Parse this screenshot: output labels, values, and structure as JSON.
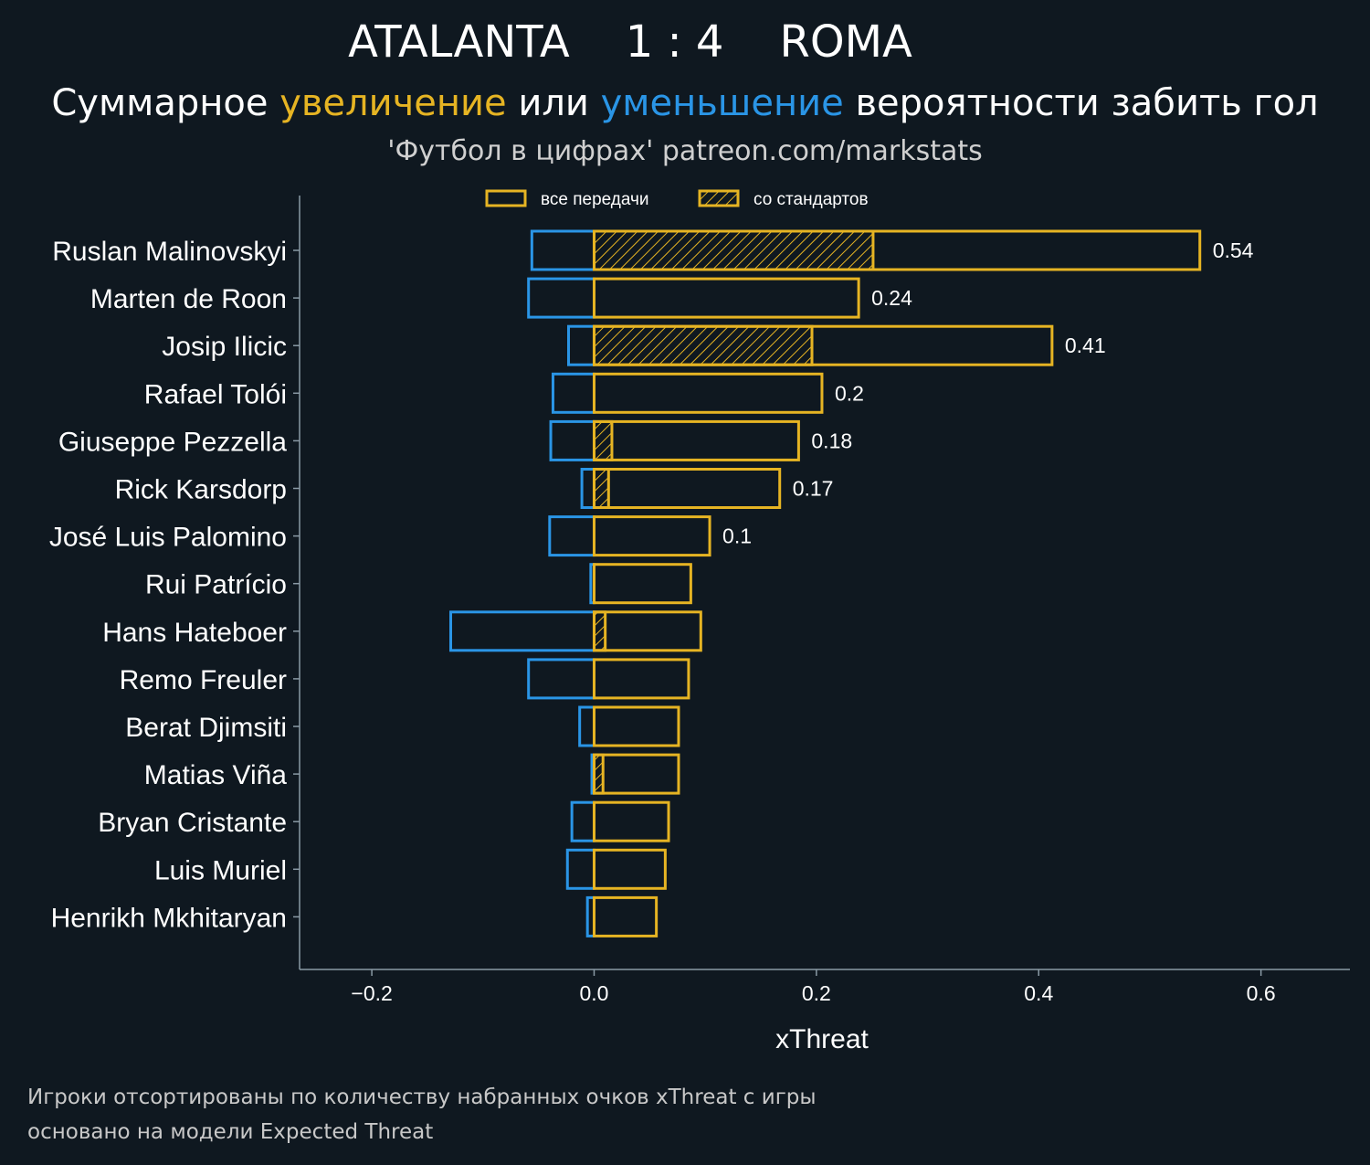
{
  "header": {
    "title": "ATALANTA    1 : 4    ROMA",
    "subtitle_part1": "Суммарное ",
    "subtitle_increase": "увеличение",
    "subtitle_part2": " или ",
    "subtitle_decrease": "уменьшение",
    "subtitle_part3": " вероятности забить гол",
    "source": "'Футбол в цифрах' patreon.com/markstats"
  },
  "colors": {
    "background": "#0f1820",
    "positive": "#e6b423",
    "negative": "#2a95e6",
    "axis": "#8a9aa5"
  },
  "chart_data": {
    "type": "bar",
    "orientation": "horizontal",
    "xlabel": "xThreat",
    "xlim": [
      -0.265,
      0.68
    ],
    "xticks": [
      -0.2,
      0.0,
      0.2,
      0.4,
      0.6
    ],
    "xtick_labels": [
      "−0.2",
      "0.0",
      "0.2",
      "0.4",
      "0.6"
    ],
    "legend": {
      "position": "top",
      "all_passes": "все передачи",
      "set_pieces": "со стандартов"
    },
    "categories": [
      "Ruslan Malinovskyi",
      "Marten de Roon",
      "Josip Ilicic",
      "Rafael Tolói",
      "Giuseppe Pezzella",
      "Rick Karsdorp",
      "José Luis Palomino",
      "Rui Patrício",
      "Hans Hateboer",
      "Remo Freuler",
      "Berat Djimsiti",
      "Matias Viña",
      "Bryan Cristante",
      "Luis Muriel",
      "Henrikh Mkhitaryan"
    ],
    "series": [
      {
        "name": "увеличение (все передачи)",
        "values": [
          0.545,
          0.238,
          0.412,
          0.205,
          0.184,
          0.167,
          0.104,
          0.087,
          0.096,
          0.085,
          0.076,
          0.076,
          0.067,
          0.064,
          0.056
        ]
      },
      {
        "name": "увеличение (со стандартов)",
        "values": [
          0.251,
          0.0,
          0.196,
          0.0,
          0.016,
          0.013,
          0.0,
          0.0,
          0.01,
          0.0,
          0.0,
          0.008,
          0.0,
          0.0,
          0.0
        ]
      },
      {
        "name": "уменьшение",
        "values": [
          -0.056,
          -0.059,
          -0.023,
          -0.037,
          -0.039,
          -0.011,
          -0.04,
          -0.003,
          -0.129,
          -0.059,
          -0.013,
          -0.002,
          -0.02,
          -0.024,
          -0.006
        ]
      }
    ],
    "value_labels": [
      "0.54",
      "0.24",
      "0.41",
      "0.2",
      "0.18",
      "0.17",
      "0.1",
      "",
      "",
      "",
      "",
      "",
      "",
      "",
      ""
    ]
  },
  "footnote": {
    "line1": "Игроки отсортированы по количеству набранных очков xThreat с игры",
    "line2": "основано на модели Expected Threat"
  }
}
